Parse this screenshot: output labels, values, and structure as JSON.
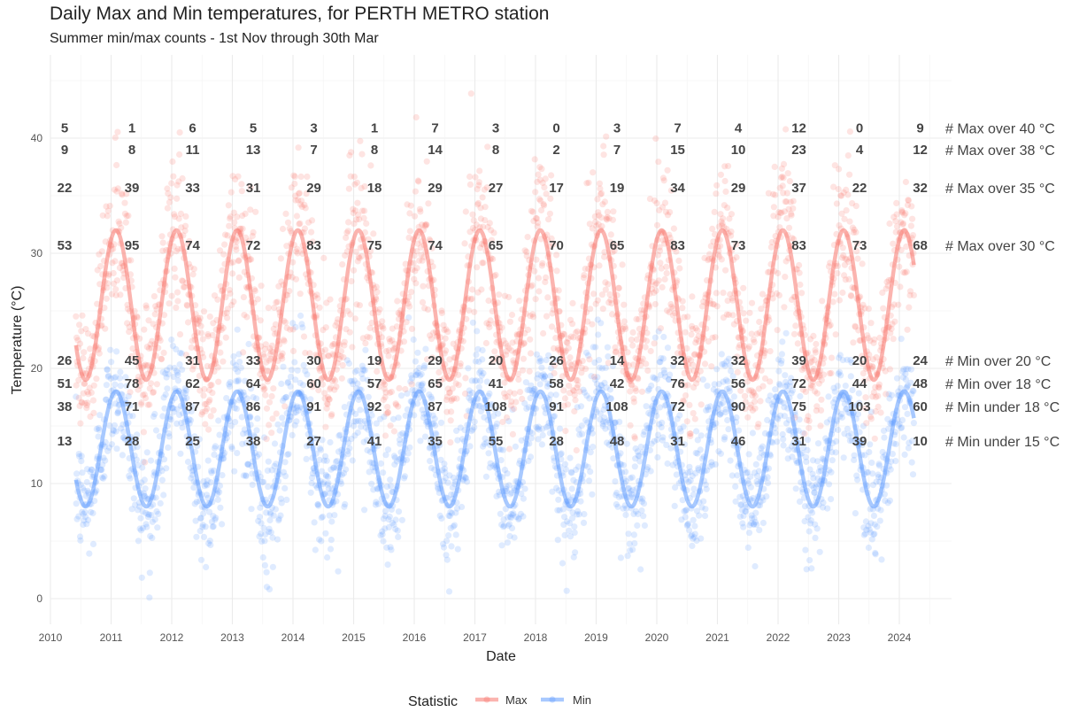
{
  "chart_data": {
    "type": "scatter",
    "title": "Daily Max and Min temperatures, for PERTH METRO station",
    "subtitle": "Summer min/max counts - 1st Nov through 30th Mar",
    "xlabel": "Date",
    "ylabel": "Temperature (°C)",
    "xlim": [
      2010,
      2024.55
    ],
    "ylim": [
      -2,
      46
    ],
    "x_ticks": [
      "2010",
      "2011",
      "2012",
      "2013",
      "2014",
      "2015",
      "2016",
      "2017",
      "2018",
      "2019",
      "2020",
      "2021",
      "2022",
      "2023",
      "2024"
    ],
    "y_ticks": [
      0,
      10,
      20,
      30,
      40
    ],
    "grid": true,
    "legend": {
      "title": "Statistic",
      "position": "bottom",
      "entries": [
        {
          "name": "Max",
          "color": "#f8766d"
        },
        {
          "name": "Min",
          "color": "#619cff"
        }
      ]
    },
    "series": [
      {
        "name": "Max",
        "color": "#f8766d",
        "seasonal_smooth": {
          "summer_peak": 32,
          "winter_trough": 19
        }
      },
      {
        "name": "Min",
        "color": "#619cff",
        "seasonal_smooth": {
          "summer_peak": 18,
          "winter_trough": 8
        }
      }
    ],
    "count_labels": {
      "seasons": [
        2010.3,
        2011.3,
        2012.3,
        2013.3,
        2014.3,
        2015.3,
        2016.3,
        2017.3,
        2018.3,
        2019.3,
        2020.3,
        2021.3,
        2022.3,
        2023.3,
        2024.3
      ],
      "rows": [
        {
          "label": "# Max over 40 °C",
          "y": 40.9,
          "values": [
            "5",
            "1",
            "6",
            "5",
            "3",
            "1",
            "7",
            "3",
            "0",
            "3",
            "7",
            "4",
            "12",
            "0",
            "9"
          ]
        },
        {
          "label": "# Max over 38 °C",
          "y": 39.0,
          "values": [
            "9",
            "8",
            "11",
            "13",
            "7",
            "8",
            "14",
            "8",
            "2",
            "7",
            "15",
            "10",
            "23",
            "4",
            "12"
          ]
        },
        {
          "label": "# Max over 35 °C",
          "y": 35.7,
          "values": [
            "22",
            "39",
            "33",
            "31",
            "29",
            "18",
            "29",
            "27",
            "17",
            "19",
            "34",
            "29",
            "37",
            "22",
            "32"
          ]
        },
        {
          "label": "# Max over 30 °C",
          "y": 30.7,
          "values": [
            "53",
            "95",
            "74",
            "72",
            "83",
            "75",
            "74",
            "65",
            "70",
            "65",
            "83",
            "73",
            "83",
            "73",
            "68"
          ]
        },
        {
          "label": "# Min over 20 °C",
          "y": 20.7,
          "values": [
            "26",
            "45",
            "31",
            "33",
            "30",
            "19",
            "29",
            "20",
            "26",
            "14",
            "32",
            "32",
            "39",
            "20",
            "24"
          ]
        },
        {
          "label": "# Min over 18 °C",
          "y": 18.7,
          "values": [
            "51",
            "78",
            "62",
            "64",
            "60",
            "57",
            "65",
            "41",
            "58",
            "42",
            "76",
            "56",
            "72",
            "44",
            "48"
          ]
        },
        {
          "label": "# Min under 18 °C",
          "y": 16.7,
          "values": [
            "38",
            "71",
            "87",
            "86",
            "91",
            "92",
            "87",
            "108",
            "91",
            "108",
            "72",
            "90",
            "75",
            "103",
            "60"
          ]
        },
        {
          "label": "# Min under 15 °C",
          "y": 13.7,
          "values": [
            "13",
            "28",
            "25",
            "38",
            "27",
            "41",
            "35",
            "55",
            "28",
            "48",
            "31",
            "46",
            "31",
            "39",
            "10"
          ]
        }
      ]
    }
  }
}
